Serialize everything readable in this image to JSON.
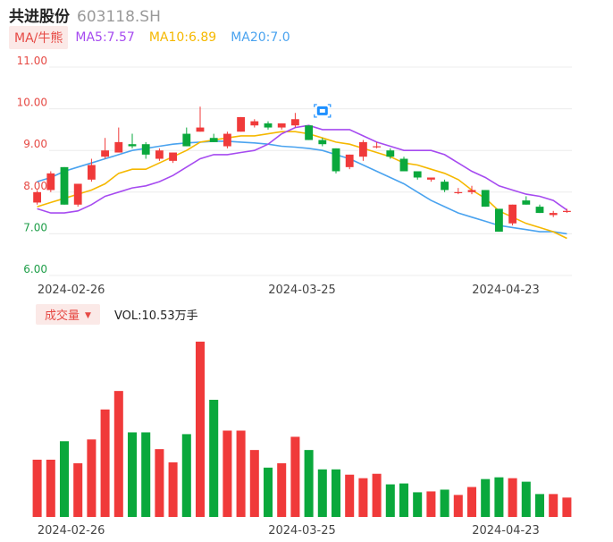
{
  "header": {
    "name": "共进股份",
    "code": "603118.SH"
  },
  "ma_legend": {
    "toggle": "MA/牛熊",
    "items": [
      {
        "label": "MA5:7.57",
        "color": "#a64bf0"
      },
      {
        "label": "MA10:6.89",
        "color": "#f5b800"
      },
      {
        "label": "MA20:7.0",
        "color": "#4aa3ef"
      }
    ]
  },
  "volume_legend": {
    "toggle": "成交量",
    "label": "VOL:10.53万手"
  },
  "colors": {
    "up": "#f03a3a",
    "down": "#0aa83c",
    "grid": "#ececec",
    "marker": "#1e90ff"
  },
  "chart_data": [
    {
      "type": "candlestick",
      "y_ticks": [
        "11.00",
        "10.00",
        "9.00",
        "8.00",
        "7.00",
        "6.00"
      ],
      "ylim": [
        6.0,
        11.0
      ],
      "x_tick_labels": [
        {
          "label": "2024-02-26",
          "index": 2.5
        },
        {
          "label": "2024-03-25",
          "index": 19.5
        },
        {
          "label": "2024-04-23",
          "index": 34.5
        }
      ],
      "ohlc": [
        [
          7.75,
          8.05,
          7.7,
          8.0
        ],
        [
          8.05,
          8.5,
          8.0,
          8.45
        ],
        [
          8.6,
          8.6,
          7.7,
          7.7
        ],
        [
          7.7,
          8.2,
          7.65,
          8.2
        ],
        [
          8.3,
          8.8,
          8.25,
          8.65
        ],
        [
          8.85,
          9.3,
          8.8,
          9.0
        ],
        [
          8.95,
          9.55,
          8.95,
          9.2
        ],
        [
          9.15,
          9.4,
          9.05,
          9.1
        ],
        [
          9.15,
          9.2,
          8.8,
          8.9
        ],
        [
          8.8,
          9.05,
          8.75,
          9.0
        ],
        [
          8.75,
          8.95,
          8.7,
          8.95
        ],
        [
          9.4,
          9.55,
          9.1,
          9.1
        ],
        [
          9.45,
          10.05,
          9.45,
          9.55
        ],
        [
          9.3,
          9.4,
          9.2,
          9.2
        ],
        [
          9.1,
          9.45,
          9.05,
          9.4
        ],
        [
          9.45,
          9.8,
          9.45,
          9.8
        ],
        [
          9.6,
          9.75,
          9.55,
          9.7
        ],
        [
          9.65,
          9.7,
          9.5,
          9.55
        ],
        [
          9.55,
          9.65,
          9.5,
          9.65
        ],
        [
          9.6,
          9.9,
          9.55,
          9.75
        ],
        [
          9.6,
          9.6,
          9.25,
          9.25
        ],
        [
          9.25,
          9.3,
          9.1,
          9.15
        ],
        [
          9.05,
          9.05,
          8.45,
          8.5
        ],
        [
          8.6,
          8.9,
          8.55,
          8.9
        ],
        [
          8.85,
          9.25,
          8.75,
          9.2
        ],
        [
          9.1,
          9.2,
          9.05,
          9.1
        ],
        [
          9.0,
          9.05,
          8.8,
          8.85
        ],
        [
          8.8,
          8.85,
          8.5,
          8.5
        ],
        [
          8.5,
          8.5,
          8.3,
          8.35
        ],
        [
          8.3,
          8.35,
          8.25,
          8.35
        ],
        [
          8.25,
          8.3,
          8.0,
          8.05
        ],
        [
          8.0,
          8.1,
          7.95,
          8.0
        ],
        [
          8.0,
          8.15,
          7.95,
          8.05
        ],
        [
          8.05,
          8.05,
          7.65,
          7.65
        ],
        [
          7.6,
          7.6,
          7.05,
          7.05
        ],
        [
          7.25,
          7.7,
          7.2,
          7.7
        ],
        [
          7.8,
          7.9,
          7.7,
          7.7
        ],
        [
          7.65,
          7.7,
          7.5,
          7.5
        ],
        [
          7.45,
          7.55,
          7.4,
          7.5
        ],
        [
          7.55,
          7.6,
          7.5,
          7.55
        ]
      ],
      "ma5": [
        7.6,
        7.5,
        7.5,
        7.55,
        7.7,
        7.9,
        8.0,
        8.1,
        8.15,
        8.25,
        8.4,
        8.6,
        8.8,
        8.9,
        8.9,
        8.95,
        9.0,
        9.15,
        9.4,
        9.55,
        9.6,
        9.5,
        9.5,
        9.5,
        9.35,
        9.2,
        9.1,
        9.0,
        9.0,
        9.0,
        8.9,
        8.7,
        8.5,
        8.35,
        8.15,
        8.05,
        7.95,
        7.9,
        7.8,
        7.57
      ],
      "ma10": [
        7.65,
        7.75,
        7.85,
        7.95,
        8.05,
        8.2,
        8.45,
        8.55,
        8.55,
        8.7,
        8.85,
        9.0,
        9.2,
        9.25,
        9.3,
        9.35,
        9.35,
        9.4,
        9.45,
        9.45,
        9.4,
        9.3,
        9.2,
        9.15,
        9.05,
        8.95,
        8.85,
        8.7,
        8.65,
        8.55,
        8.45,
        8.3,
        8.05,
        7.85,
        7.55,
        7.4,
        7.25,
        7.15,
        7.05,
        6.89
      ],
      "ma20": [
        8.25,
        8.35,
        8.5,
        8.6,
        8.7,
        8.8,
        8.9,
        9.0,
        9.05,
        9.1,
        9.15,
        9.18,
        9.2,
        9.22,
        9.22,
        9.2,
        9.18,
        9.15,
        9.1,
        9.08,
        9.05,
        9.0,
        8.9,
        8.8,
        8.65,
        8.5,
        8.35,
        8.2,
        8.0,
        7.8,
        7.65,
        7.5,
        7.4,
        7.3,
        7.2,
        7.15,
        7.1,
        7.05,
        7.05,
        7.0
      ]
    },
    {
      "type": "bar",
      "name": "成交量",
      "values": [
        6.5,
        6.5,
        8.6,
        6.1,
        8.8,
        12.2,
        14.3,
        9.6,
        9.6,
        7.7,
        6.2,
        9.4,
        19.9,
        13.3,
        9.8,
        9.8,
        7.6,
        5.6,
        6.1,
        9.1,
        7.6,
        5.4,
        5.4,
        4.8,
        4.4,
        4.9,
        3.7,
        3.8,
        2.8,
        2.9,
        3.1,
        2.5,
        3.4,
        4.3,
        4.5,
        4.4,
        4.0,
        2.6,
        2.6,
        2.2
      ],
      "ylim": [
        0,
        20
      ]
    }
  ]
}
